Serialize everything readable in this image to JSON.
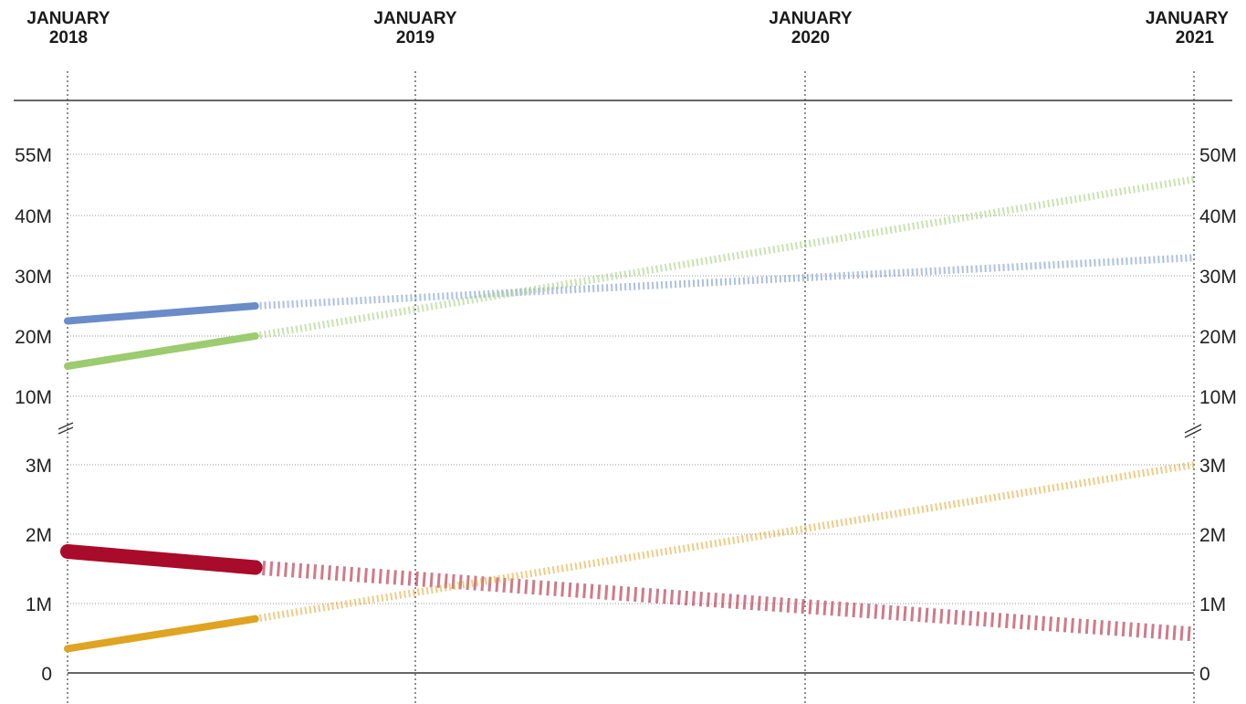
{
  "chart_data": {
    "type": "line",
    "title": "",
    "xlabel": "",
    "ylabel": "",
    "grid": true,
    "x_axis": {
      "position": "top",
      "ticks": [
        {
          "date": "2018-01",
          "line1": "JANUARY",
          "line2": "2018"
        },
        {
          "date": "2019-01",
          "line1": "JANUARY",
          "line2": "2019"
        },
        {
          "date": "2020-01",
          "line1": "JANUARY",
          "line2": "2020"
        },
        {
          "date": "2021-01",
          "line1": "JANUARY",
          "line2": "2021"
        }
      ],
      "xlim": [
        "2018-01",
        "2021-01"
      ]
    },
    "y_axis": {
      "broken": true,
      "lower_segment": {
        "ylim": [
          0,
          3000000
        ]
      },
      "upper_segment": {
        "ylim": [
          10000000,
          55000000
        ]
      },
      "left_tick_labels": [
        "55M",
        "40M",
        "30M",
        "20M",
        "10M",
        "3M",
        "2M",
        "1M",
        "0"
      ],
      "right_tick_labels": [
        "50M",
        "40M",
        "30M",
        "20M",
        "10M",
        "3M",
        "2M",
        "1M",
        "0"
      ]
    },
    "series": [
      {
        "color": "#6a8cc8",
        "segment": "upper",
        "actual": [
          {
            "x": "2018-01",
            "y": 22500000
          },
          {
            "x": "2018-07",
            "y": 25000000
          }
        ],
        "projected": [
          {
            "x": "2018-07",
            "y": 25000000
          },
          {
            "x": "2021-01",
            "y": 33000000
          }
        ]
      },
      {
        "color": "#9ccb70",
        "segment": "upper",
        "actual": [
          {
            "x": "2018-01",
            "y": 15000000
          },
          {
            "x": "2018-07",
            "y": 20000000
          }
        ],
        "projected": [
          {
            "x": "2018-07",
            "y": 20000000
          },
          {
            "x": "2021-01",
            "y": 46000000
          }
        ]
      },
      {
        "color": "#a80c2a",
        "segment": "lower",
        "actual": [
          {
            "x": "2018-01",
            "y": 1750000
          },
          {
            "x": "2018-07",
            "y": 1520000
          }
        ],
        "projected": [
          {
            "x": "2018-07",
            "y": 1520000
          },
          {
            "x": "2021-01",
            "y": 560000
          }
        ]
      },
      {
        "color": "#e0a322",
        "segment": "lower",
        "actual": [
          {
            "x": "2018-01",
            "y": 350000
          },
          {
            "x": "2018-07",
            "y": 780000
          }
        ],
        "projected": [
          {
            "x": "2018-07",
            "y": 780000
          },
          {
            "x": "2021-01",
            "y": 3000000
          }
        ]
      }
    ]
  }
}
